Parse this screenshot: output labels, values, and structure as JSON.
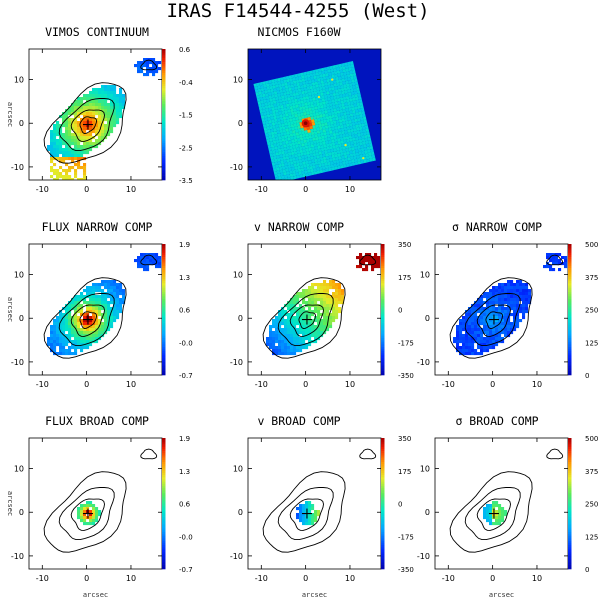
{
  "title": "IRAS F14544-4255 (West)",
  "chart_data": [
    {
      "type": "heatmap",
      "title": "VIMOS CONTINUUM",
      "xlabel": "",
      "ylabel": "arcsec",
      "xticks": [
        "-10",
        "0",
        "10"
      ],
      "yticks": [
        "10",
        "0",
        "-10"
      ],
      "xlim": [
        -13,
        17
      ],
      "ylim": [
        -13,
        17
      ],
      "colorbar": {
        "ticks": [
          "0.6",
          "-0.4",
          "-1.5",
          "-2.5",
          "-3.5"
        ],
        "range": [
          -3.5,
          0.6
        ]
      },
      "has_contours": true,
      "has_cross": true,
      "palette": "rainbow"
    },
    {
      "type": "heatmap",
      "title": "NICMOS F160W",
      "xlabel": "",
      "ylabel": "",
      "xticks": [
        "-10",
        "0",
        "10"
      ],
      "yticks": [
        "10",
        "0",
        "-10"
      ],
      "xlim": [
        -13,
        17
      ],
      "ylim": [
        -13,
        17
      ],
      "colorbar": null,
      "has_contours": false,
      "has_cross": false,
      "palette": "rainbow"
    },
    {
      "type": "heatmap",
      "title": "FLUX NARROW COMP",
      "xlabel": "",
      "ylabel": "arcsec",
      "xticks": [
        "-10",
        "0",
        "10"
      ],
      "yticks": [
        "10",
        "0",
        "-10"
      ],
      "xlim": [
        -13,
        17
      ],
      "ylim": [
        -13,
        17
      ],
      "colorbar": {
        "ticks": [
          "1.9",
          "1.3",
          "0.6",
          "-0.0",
          "-0.7"
        ],
        "range": [
          -0.7,
          1.9
        ]
      },
      "has_contours": true,
      "has_cross": true,
      "palette": "rainbow"
    },
    {
      "type": "heatmap",
      "title": "v NARROW COMP",
      "xlabel": "",
      "ylabel": "",
      "xticks": [
        "-10",
        "0",
        "10"
      ],
      "yticks": [
        "10",
        "0",
        "-10"
      ],
      "xlim": [
        -13,
        17
      ],
      "ylim": [
        -13,
        17
      ],
      "colorbar": {
        "ticks": [
          "350",
          "175",
          "0",
          "-175",
          "-350"
        ],
        "range": [
          -350,
          350
        ]
      },
      "has_contours": true,
      "has_cross": true,
      "palette": "rainbow"
    },
    {
      "type": "heatmap",
      "title": "σ NARROW COMP",
      "xlabel": "",
      "ylabel": "",
      "xticks": [
        "-10",
        "0",
        "10"
      ],
      "yticks": [
        "10",
        "0",
        "-10"
      ],
      "xlim": [
        -13,
        17
      ],
      "ylim": [
        -13,
        17
      ],
      "colorbar": {
        "ticks": [
          "500",
          "375",
          "250",
          "125",
          "0"
        ],
        "range": [
          0,
          500
        ]
      },
      "has_contours": true,
      "has_cross": true,
      "palette": "rainbow"
    },
    {
      "type": "heatmap",
      "title": "FLUX BROAD COMP",
      "xlabel": "arcsec",
      "ylabel": "arcsec",
      "xticks": [
        "-10",
        "0",
        "10"
      ],
      "yticks": [
        "10",
        "0",
        "-10"
      ],
      "xlim": [
        -13,
        17
      ],
      "ylim": [
        -13,
        17
      ],
      "colorbar": {
        "ticks": [
          "1.9",
          "1.3",
          "0.6",
          "-0.0",
          "-0.7"
        ],
        "range": [
          -0.7,
          1.9
        ]
      },
      "has_contours": true,
      "has_cross": true,
      "palette": "rainbow"
    },
    {
      "type": "heatmap",
      "title": "v BROAD COMP",
      "xlabel": "arcsec",
      "ylabel": "",
      "xticks": [
        "-10",
        "0",
        "10"
      ],
      "yticks": [
        "10",
        "0",
        "-10"
      ],
      "xlim": [
        -13,
        17
      ],
      "ylim": [
        -13,
        17
      ],
      "colorbar": {
        "ticks": [
          "350",
          "175",
          "0",
          "-175",
          "-350"
        ],
        "range": [
          -350,
          350
        ]
      },
      "has_contours": true,
      "has_cross": true,
      "palette": "rainbow"
    },
    {
      "type": "heatmap",
      "title": "σ BROAD COMP",
      "xlabel": "arcsec",
      "ylabel": "",
      "xticks": [
        "-10",
        "0",
        "10"
      ],
      "yticks": [
        "10",
        "0",
        "-10"
      ],
      "xlim": [
        -13,
        17
      ],
      "ylim": [
        -13,
        17
      ],
      "colorbar": {
        "ticks": [
          "500",
          "375",
          "250",
          "125",
          "0"
        ],
        "range": [
          0,
          500
        ]
      },
      "has_contours": true,
      "has_cross": true,
      "palette": "rainbow"
    }
  ]
}
